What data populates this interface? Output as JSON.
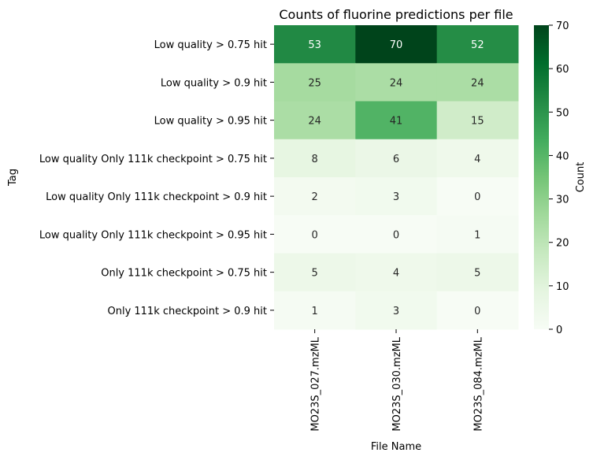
{
  "chart_data": {
    "type": "heatmap",
    "title": "Counts of fluorine predictions per file",
    "xlabel": "File Name",
    "ylabel": "Tag",
    "x_categories": [
      "MO23S_027.mzML",
      "MO23S_030.mzML",
      "MO23S_084.mzML"
    ],
    "y_categories": [
      "Low quality > 0.75 hit",
      "Low quality > 0.9 hit",
      "Low quality > 0.95 hit",
      "Low quality Only 111k checkpoint > 0.75 hit",
      "Low quality Only 111k checkpoint > 0.9 hit",
      "Low quality Only 111k checkpoint > 0.95 hit",
      "Only 111k checkpoint > 0.75 hit",
      "Only 111k checkpoint > 0.9 hit"
    ],
    "values": [
      [
        53,
        70,
        52
      ],
      [
        25,
        24,
        24
      ],
      [
        24,
        41,
        15
      ],
      [
        8,
        6,
        4
      ],
      [
        2,
        3,
        0
      ],
      [
        0,
        0,
        1
      ],
      [
        5,
        4,
        5
      ],
      [
        1,
        3,
        0
      ]
    ],
    "colorbar": {
      "label": "Count",
      "range": [
        0,
        70
      ],
      "ticks": [
        0,
        10,
        20,
        30,
        40,
        50,
        60,
        70
      ],
      "colormap": "Greens"
    }
  }
}
